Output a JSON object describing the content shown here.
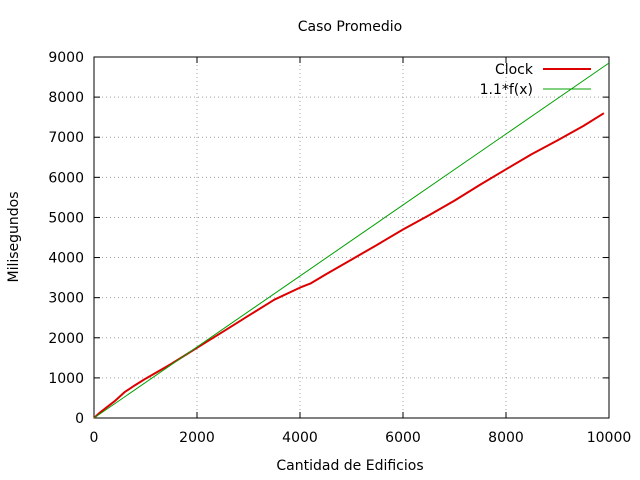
{
  "chart_data": {
    "type": "line",
    "title": "Caso Promedio",
    "xlabel": "Cantidad de Edificios",
    "ylabel": "Milisegundos",
    "xlim": [
      0,
      10000
    ],
    "ylim": [
      0,
      9000
    ],
    "xticks": [
      0,
      2000,
      4000,
      6000,
      8000,
      10000
    ],
    "yticks": [
      0,
      1000,
      2000,
      3000,
      4000,
      5000,
      6000,
      7000,
      8000,
      9000
    ],
    "xtick_labels": [
      "0",
      "2000",
      "4000",
      "6000",
      "8000",
      "10000"
    ],
    "ytick_labels": [
      "0",
      "1000",
      "2000",
      "3000",
      "4000",
      "5000",
      "6000",
      "7000",
      "8000",
      "9000"
    ],
    "grid": true,
    "legend_position": "top-right",
    "series": [
      {
        "name": "Clock",
        "color": "#dd0000",
        "x": [
          0,
          100,
          200,
          400,
          600,
          800,
          1000,
          1500,
          2000,
          2500,
          3000,
          3500,
          4000,
          4200,
          4500,
          5000,
          5500,
          6000,
          6500,
          7000,
          7500,
          8000,
          8500,
          9000,
          9500,
          9900
        ],
        "y": [
          0,
          120,
          220,
          420,
          650,
          820,
          980,
          1350,
          1750,
          2150,
          2550,
          2950,
          3250,
          3350,
          3580,
          3950,
          4320,
          4700,
          5050,
          5420,
          5820,
          6200,
          6580,
          6920,
          7280,
          7600
        ]
      },
      {
        "name": "1.1*f(x)",
        "color": "#00a000",
        "x": [
          0,
          10000
        ],
        "y": [
          0,
          8850
        ]
      }
    ]
  }
}
